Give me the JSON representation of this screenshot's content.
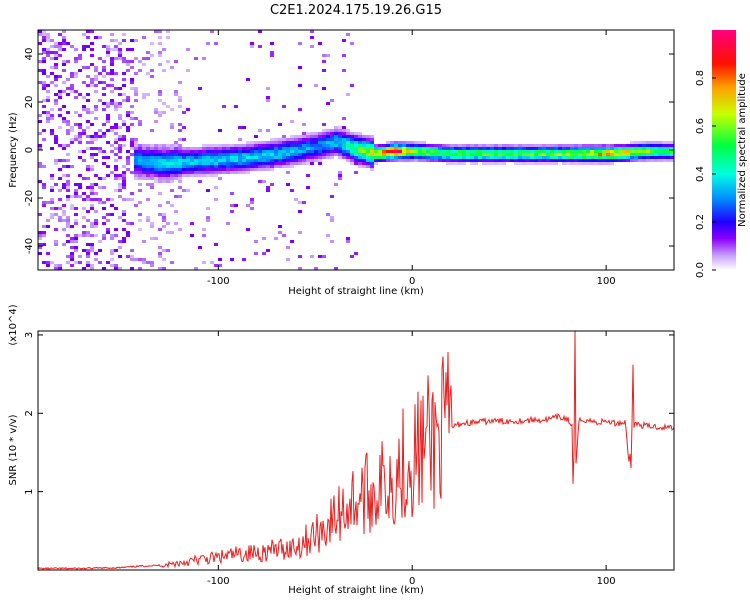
{
  "title": "C2E1.2024.175.19.26.G15",
  "colors": {
    "snr_line": "#e82020",
    "axis": "#000000",
    "colormap": [
      "#c8c8ff",
      "#9b4dff",
      "#6a00ff",
      "#0000ff",
      "#0080ff",
      "#00ffff",
      "#00ff80",
      "#00ff00",
      "#ffff00",
      "#ff8000",
      "#ff0000",
      "#ff0080"
    ]
  },
  "chart_data": [
    {
      "type": "heatmap",
      "xlabel": "Height of straight line (km)",
      "ylabel": "Frequency (Hz)",
      "xlim": [
        -193,
        135
      ],
      "ylim": [
        -50,
        50
      ],
      "x_ticks": [
        -100,
        0,
        100
      ],
      "y_ticks": [
        -40,
        -20,
        0,
        20,
        40
      ],
      "colorbar": {
        "label": "Normalized spectral amplitude",
        "range": [
          0,
          1
        ],
        "ticks": [
          0.0,
          0.2,
          0.4,
          0.6,
          0.8
        ]
      },
      "ridge": {
        "x": [
          -193,
          -150,
          -130,
          -110,
          -90,
          -70,
          -50,
          -40,
          -30,
          -20,
          -10,
          0,
          20,
          40,
          60,
          80,
          100,
          120,
          135
        ],
        "center_hz": [
          0,
          -3,
          -5,
          -4,
          -3,
          -1,
          2,
          4,
          1,
          -1,
          0,
          0,
          -1,
          -1,
          -1,
          -1,
          -1,
          0,
          0
        ],
        "peak_amplitude": [
          0.15,
          0.25,
          0.35,
          0.35,
          0.35,
          0.35,
          0.3,
          0.35,
          0.5,
          0.7,
          0.9,
          0.6,
          0.55,
          0.55,
          0.55,
          0.6,
          0.75,
          0.6,
          0.5
        ]
      }
    },
    {
      "type": "line",
      "xlabel": "Height of straight line (km)",
      "ylabel": "SNR (10 * v/v)",
      "y_scale_label": "(x10^4)",
      "xlim": [
        -193,
        135
      ],
      "ylim": [
        0,
        3.05
      ],
      "x_ticks": [
        -100,
        0,
        100
      ],
      "y_ticks": [
        1,
        2,
        3
      ],
      "series": [
        {
          "x": [
            -193,
            -170,
            -150,
            -140,
            -130,
            -120,
            -110,
            -100,
            -90,
            -80,
            -70,
            -60,
            -55,
            -50,
            -45,
            -40,
            -35,
            -30,
            -25,
            -20,
            -15,
            -10,
            -5,
            0,
            5,
            10,
            15,
            20,
            25,
            30,
            40,
            50,
            60,
            70,
            75,
            80,
            83,
            84,
            86,
            90,
            95,
            100,
            105,
            110,
            112,
            113,
            115,
            120,
            125,
            130,
            135
          ],
          "y": [
            0.02,
            0.02,
            0.03,
            0.05,
            0.06,
            0.09,
            0.13,
            0.16,
            0.2,
            0.22,
            0.26,
            0.3,
            0.38,
            0.45,
            0.55,
            0.65,
            0.8,
            0.9,
            0.95,
            1.0,
            1.1,
            1.2,
            1.35,
            1.45,
            1.55,
            1.65,
            1.75,
            1.82,
            1.87,
            1.88,
            1.9,
            1.9,
            1.91,
            1.92,
            1.95,
            1.93,
            1.8,
            1.15,
            1.9,
            1.92,
            1.88,
            1.9,
            1.87,
            1.89,
            1.3,
            1.85,
            1.86,
            1.84,
            1.83,
            1.82,
            1.82
          ]
        }
      ],
      "spikes": [
        {
          "x": 84,
          "y": 3.05
        },
        {
          "x": 83,
          "y": 1.1
        },
        {
          "x": 114,
          "y": 2.62
        },
        {
          "x": 113,
          "y": 1.3
        }
      ]
    }
  ]
}
